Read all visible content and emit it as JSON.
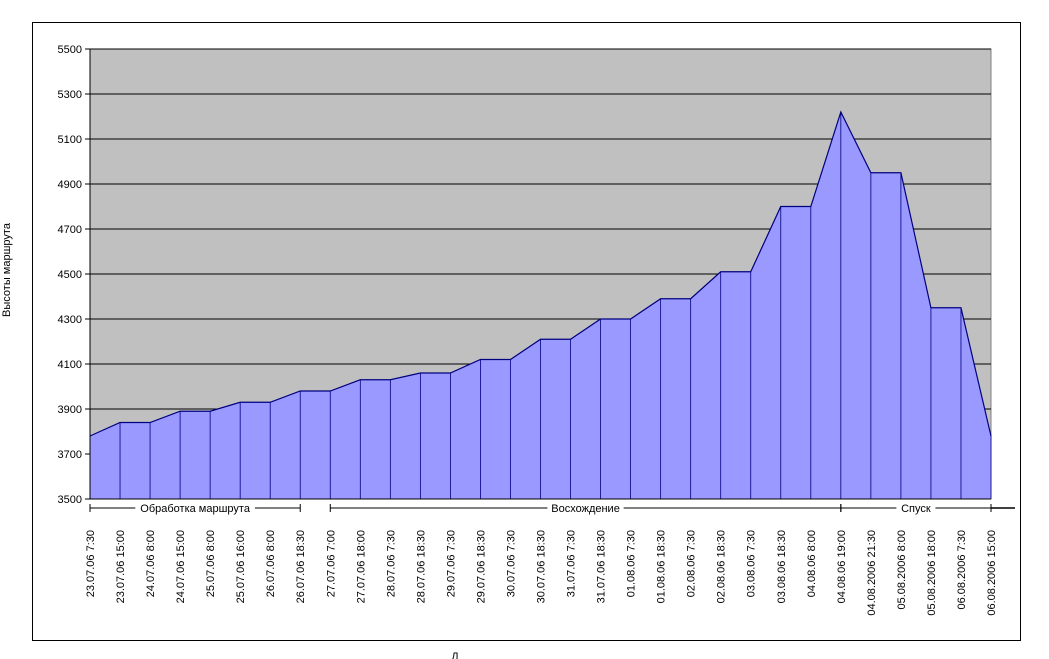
{
  "chart_data": {
    "type": "area",
    "ylabel": "Высоты маршрута",
    "xlabel": "Д",
    "ylim": [
      3500,
      5500
    ],
    "yticks": [
      3500,
      3700,
      3900,
      4100,
      4300,
      4500,
      4700,
      4900,
      5100,
      5300,
      5500
    ],
    "grid": true,
    "colors": {
      "plot_bg": "#c0c0c0",
      "fill": "#9999ff",
      "line": "#000080",
      "grid": "#000000"
    },
    "categories": [
      "23.07.06 7:30",
      "23.07.06 15:00",
      "24.07.06 8:00",
      "24.07.06 15:00",
      "25.07.06 8:00",
      "25.07.06 16:00",
      "26.07.06 8:00",
      "26.07.06 18:30",
      "27.07.06 7:00",
      "27.07.06 18:00",
      "28.07.06 7:30",
      "28.07.06 18:30",
      "29.07.06 7:30",
      "29.07.06 18:30",
      "30.07.06 7:30",
      "30.07.06 18:30",
      "31.07.06 7:30",
      "31.07.06 18:30",
      "01.08.06 7:30",
      "01.08.06 18:30",
      "02.08.06 7:30",
      "02.08.06 18:30",
      "03.08.06 7:30",
      "03.08.06 18:30",
      "04.08.06 8:00",
      "04.08.06 19:00",
      "04.08.2006 21:30",
      "05.08.2006 8:00",
      "05.08.2006 18:00",
      "06.08.2006 7:30",
      "06.08.2006 15:00"
    ],
    "values": [
      3780,
      3840,
      3840,
      3890,
      3890,
      3930,
      3930,
      3980,
      3980,
      4030,
      4030,
      4060,
      4060,
      4120,
      4120,
      4210,
      4210,
      4300,
      4300,
      4390,
      4390,
      4510,
      4510,
      4800,
      4800,
      5220,
      4950,
      4950,
      4350,
      4350,
      3780
    ],
    "phases": [
      {
        "label": "Обработка маршрута",
        "start": 0,
        "end": 7
      },
      {
        "label": "Восхождение",
        "start": 8,
        "end": 25
      },
      {
        "label": "Спуск",
        "start": 25,
        "end": 30
      }
    ]
  }
}
